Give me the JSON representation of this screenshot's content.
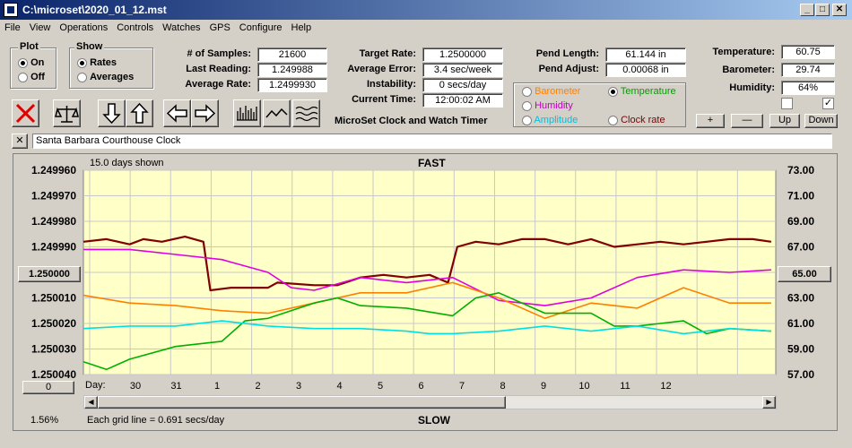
{
  "window": {
    "title": "C:\\microset\\2020_01_12.mst",
    "min": "_",
    "max": "□",
    "close": "✕"
  },
  "menu": [
    "File",
    "View",
    "Operations",
    "Controls",
    "Watches",
    "GPS",
    "Configure",
    "Help"
  ],
  "plot": {
    "title": "Plot",
    "options": [
      "On",
      "Off"
    ],
    "selected": "On"
  },
  "show": {
    "title": "Show",
    "options": [
      "Rates",
      "Averages"
    ],
    "selected": "Rates"
  },
  "stats": {
    "samples_label": "# of Samples:",
    "samples": "21600",
    "last_label": "Last Reading:",
    "last": "1.249988",
    "avg_label": "Average Rate:",
    "avg": "1.2499930"
  },
  "target": {
    "rate_label": "Target Rate:",
    "rate": "1.2500000",
    "error_label": "Average Error:",
    "error": "3.4 sec/week",
    "instab_label": "Instability:",
    "instab": "0 secs/day",
    "time_label": "Current Time:",
    "time": "12:00:02 AM",
    "app_title": "MicroSet Clock and Watch Timer"
  },
  "pend": {
    "length_label": "Pend Length:",
    "length": "61.144 in",
    "adjust_label": "Pend Adjust:",
    "adjust": "0.00068 in"
  },
  "overlay": {
    "options": [
      {
        "label": "Barometer",
        "color": "#ff8000"
      },
      {
        "label": "Temperature",
        "color": "#00a000"
      },
      {
        "label": "Humidity",
        "color": "#c000c0"
      },
      {
        "label": "Amplitude",
        "color": "#00c0e0"
      },
      {
        "label": "Clock rate",
        "color": "#800000"
      }
    ],
    "selected": "Temperature"
  },
  "env": {
    "temp_label": "Temperature:",
    "temp": "60.75",
    "baro_label": "Barometer:",
    "baro": "29.74",
    "hum_label": "Humidity:",
    "hum": "64%",
    "check2": "✓"
  },
  "scale_buttons": [
    "+",
    "—",
    "Up",
    "Down"
  ],
  "watch": {
    "close": "✕",
    "name": "Santa Barbara Courthouse Clock"
  },
  "chart_labels": {
    "days_shown": "15.0 days shown",
    "fast": "FAST",
    "slow": "SLOW",
    "grid_note": "Each grid line = 0.691 secs/day",
    "percent": "1.56%",
    "day_label": "Day:",
    "left_center": "1.250000",
    "right_center": "65.00",
    "bottom_button": "0"
  },
  "colors": {
    "plot_bg": "#ffffc8",
    "barometer": "#ff8000",
    "temperature": "#00b000",
    "humidity": "#e000e0",
    "amplitude": "#00e0e0",
    "rate": "#800000"
  },
  "chart_data": {
    "type": "line",
    "y_left_ticks": [
      "1.249960",
      "1.249970",
      "1.249980",
      "1.249990",
      "1.250000",
      "1.250010",
      "1.250020",
      "1.250030",
      "1.250040"
    ],
    "y_right_ticks": [
      "73.00",
      "71.00",
      "69.00",
      "67.00",
      "65.00",
      "63.00",
      "61.00",
      "59.00",
      "57.00"
    ],
    "x_ticks": [
      "30",
      "31",
      "1",
      "2",
      "3",
      "4",
      "5",
      "6",
      "7",
      "8",
      "9",
      "10",
      "11",
      "12"
    ],
    "x_range_days": [
      0,
      15
    ],
    "series": [
      {
        "name": "Clock rate",
        "color": "#800000",
        "x": [
          0,
          0.5,
          1,
          1.3,
          1.7,
          2.2,
          2.6,
          2.75,
          3.2,
          3.6,
          4.0,
          4.2,
          5.0,
          5.5,
          6.0,
          6.5,
          7.0,
          7.5,
          7.9,
          8.1,
          8.5,
          9.0,
          9.5,
          10,
          10.5,
          11,
          11.5,
          12,
          12.5,
          13,
          13.5,
          14,
          14.5,
          14.9
        ],
        "y": [
          1.249988,
          1.249987,
          1.249989,
          1.249987,
          1.249988,
          1.249986,
          1.249988,
          1.250007,
          1.250006,
          1.250006,
          1.250006,
          1.250004,
          1.250005,
          1.250005,
          1.250002,
          1.250001,
          1.250002,
          1.250001,
          1.250004,
          1.24999,
          1.249988,
          1.249989,
          1.249987,
          1.249987,
          1.249989,
          1.249987,
          1.24999,
          1.249989,
          1.249988,
          1.249989,
          1.249988,
          1.249987,
          1.249987,
          1.249988
        ]
      },
      {
        "name": "Humidity",
        "color": "#e000e0",
        "x": [
          0,
          1,
          2,
          3,
          4,
          4.5,
          5,
          6,
          7,
          8,
          9,
          10,
          11,
          12,
          13,
          14,
          14.9
        ],
        "y": [
          1.249991,
          1.249991,
          1.249993,
          1.249995,
          1.25,
          1.250006,
          1.250007,
          1.250002,
          1.250004,
          1.250002,
          1.250011,
          1.250013,
          1.25001,
          1.250002,
          1.249999,
          1.25,
          1.249999
        ]
      },
      {
        "name": "Barometer",
        "color": "#ff8000",
        "x": [
          0,
          1,
          2,
          3,
          4,
          5,
          6,
          7,
          8,
          9,
          10,
          11,
          12,
          13,
          14,
          14.9
        ],
        "y": [
          1.250009,
          1.250012,
          1.250013,
          1.250015,
          1.250016,
          1.250012,
          1.250008,
          1.250008,
          1.250004,
          1.25001,
          1.250018,
          1.250012,
          1.250014,
          1.250006,
          1.250012,
          1.250012
        ]
      },
      {
        "name": "Temperature",
        "color": "#00b000",
        "x": [
          0,
          0.5,
          1,
          2,
          3,
          3.5,
          4,
          5,
          5.5,
          6,
          7,
          8,
          8.5,
          9,
          10,
          11,
          11.5,
          12,
          12.5,
          13,
          13.5,
          14,
          14.9
        ],
        "y": [
          1.250035,
          1.250038,
          1.250034,
          1.250029,
          1.250027,
          1.250019,
          1.250018,
          1.250012,
          1.25001,
          1.250013,
          1.250014,
          1.250017,
          1.25001,
          1.250008,
          1.250016,
          1.250016,
          1.250021,
          1.250021,
          1.25002,
          1.250019,
          1.250024,
          1.250022,
          1.250023
        ]
      },
      {
        "name": "Amplitude",
        "color": "#00e0e0",
        "x": [
          0,
          1,
          2,
          3,
          4,
          5,
          6,
          7,
          7.5,
          8,
          9,
          10,
          11,
          12,
          13,
          13.5,
          14,
          14.9
        ],
        "y": [
          1.250022,
          1.250021,
          1.250021,
          1.250019,
          1.250021,
          1.250022,
          1.250022,
          1.250023,
          1.250024,
          1.250024,
          1.250023,
          1.250021,
          1.250023,
          1.250021,
          1.250024,
          1.250023,
          1.250022,
          1.250023
        ]
      }
    ]
  }
}
